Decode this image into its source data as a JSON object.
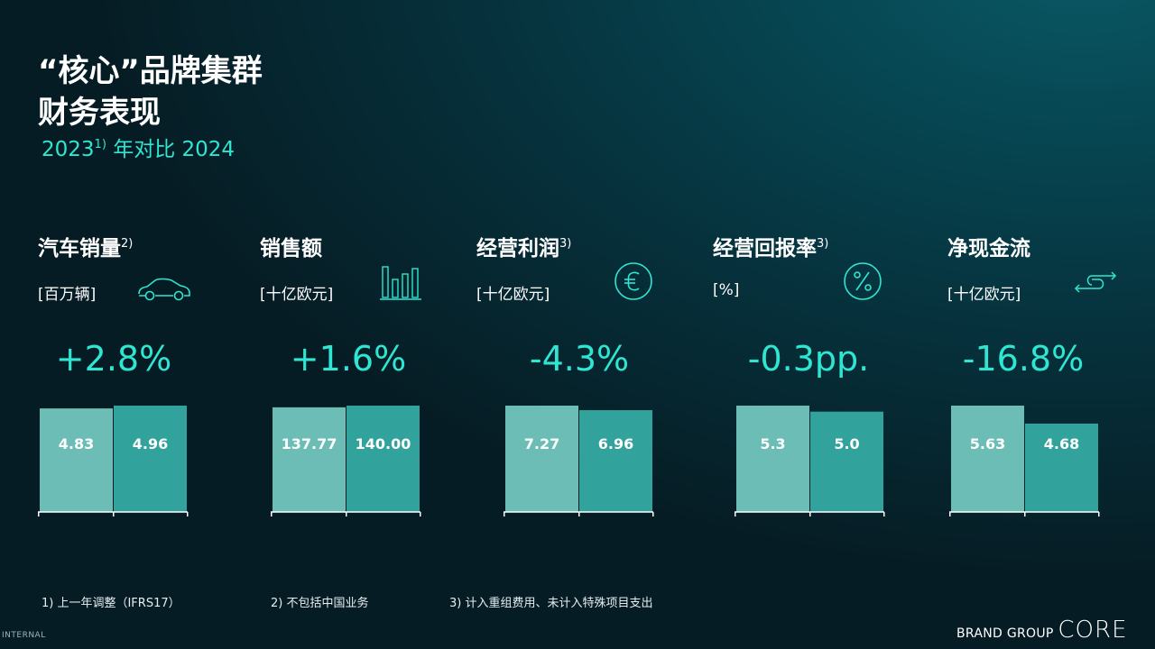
{
  "title_line1": "“核心”品牌集群",
  "title_line2": "财务表现",
  "subtitle_year": "2023",
  "subtitle_sup": "1)",
  "subtitle_rest": " 年对比 2024",
  "colors": {
    "bar_2023": "#6bbdb6",
    "bar_2024": "#32a39c",
    "accent": "#2ee6d2"
  },
  "chart_data": [
    {
      "type": "bar",
      "title": "汽车销量",
      "title_sup": "2)",
      "unit": "[百万辆]",
      "icon": "car-icon",
      "change": "+2.8%",
      "categories": [
        "2023",
        "2024"
      ],
      "values": [
        4.83,
        4.96
      ],
      "value_labels": [
        "4.83",
        "4.96"
      ]
    },
    {
      "type": "bar",
      "title": "销售额",
      "title_sup": "",
      "unit": "[十亿欧元]",
      "icon": "bar-chart-icon",
      "change": "+1.6%",
      "categories": [
        "2023",
        "2024"
      ],
      "values": [
        137.77,
        140.0
      ],
      "value_labels": [
        "137.77",
        "140.00"
      ]
    },
    {
      "type": "bar",
      "title": "经营利润",
      "title_sup": "3)",
      "unit": "[十亿欧元]",
      "icon": "euro-icon",
      "change": "-4.3%",
      "categories": [
        "2023",
        "2024"
      ],
      "values": [
        7.27,
        6.96
      ],
      "value_labels": [
        "7.27",
        "6.96"
      ]
    },
    {
      "type": "bar",
      "title": "经营回报率",
      "title_sup": "3)",
      "unit": "[%]",
      "icon": "percent-icon",
      "change": "-0.3pp.",
      "categories": [
        "2023",
        "2024"
      ],
      "values": [
        5.3,
        5.0
      ],
      "value_labels": [
        "5.3",
        "5.0"
      ]
    },
    {
      "type": "bar",
      "title": "净现金流",
      "title_sup": "",
      "unit": "[十亿欧元]",
      "icon": "cash-flow-arrows-icon",
      "change": "-16.8%",
      "categories": [
        "2023",
        "2024"
      ],
      "values": [
        5.63,
        4.68
      ],
      "value_labels": [
        "5.63",
        "4.68"
      ]
    }
  ],
  "footnotes": [
    "1) 上一年调整（IFRS17）",
    "2) 不包括中国业务",
    "3) 计入重组费用、未计入特殊项目支出"
  ],
  "internal_label": "INTERNAL",
  "brand_line1": "BRAND GROUP ",
  "brand_line2": "CORE"
}
